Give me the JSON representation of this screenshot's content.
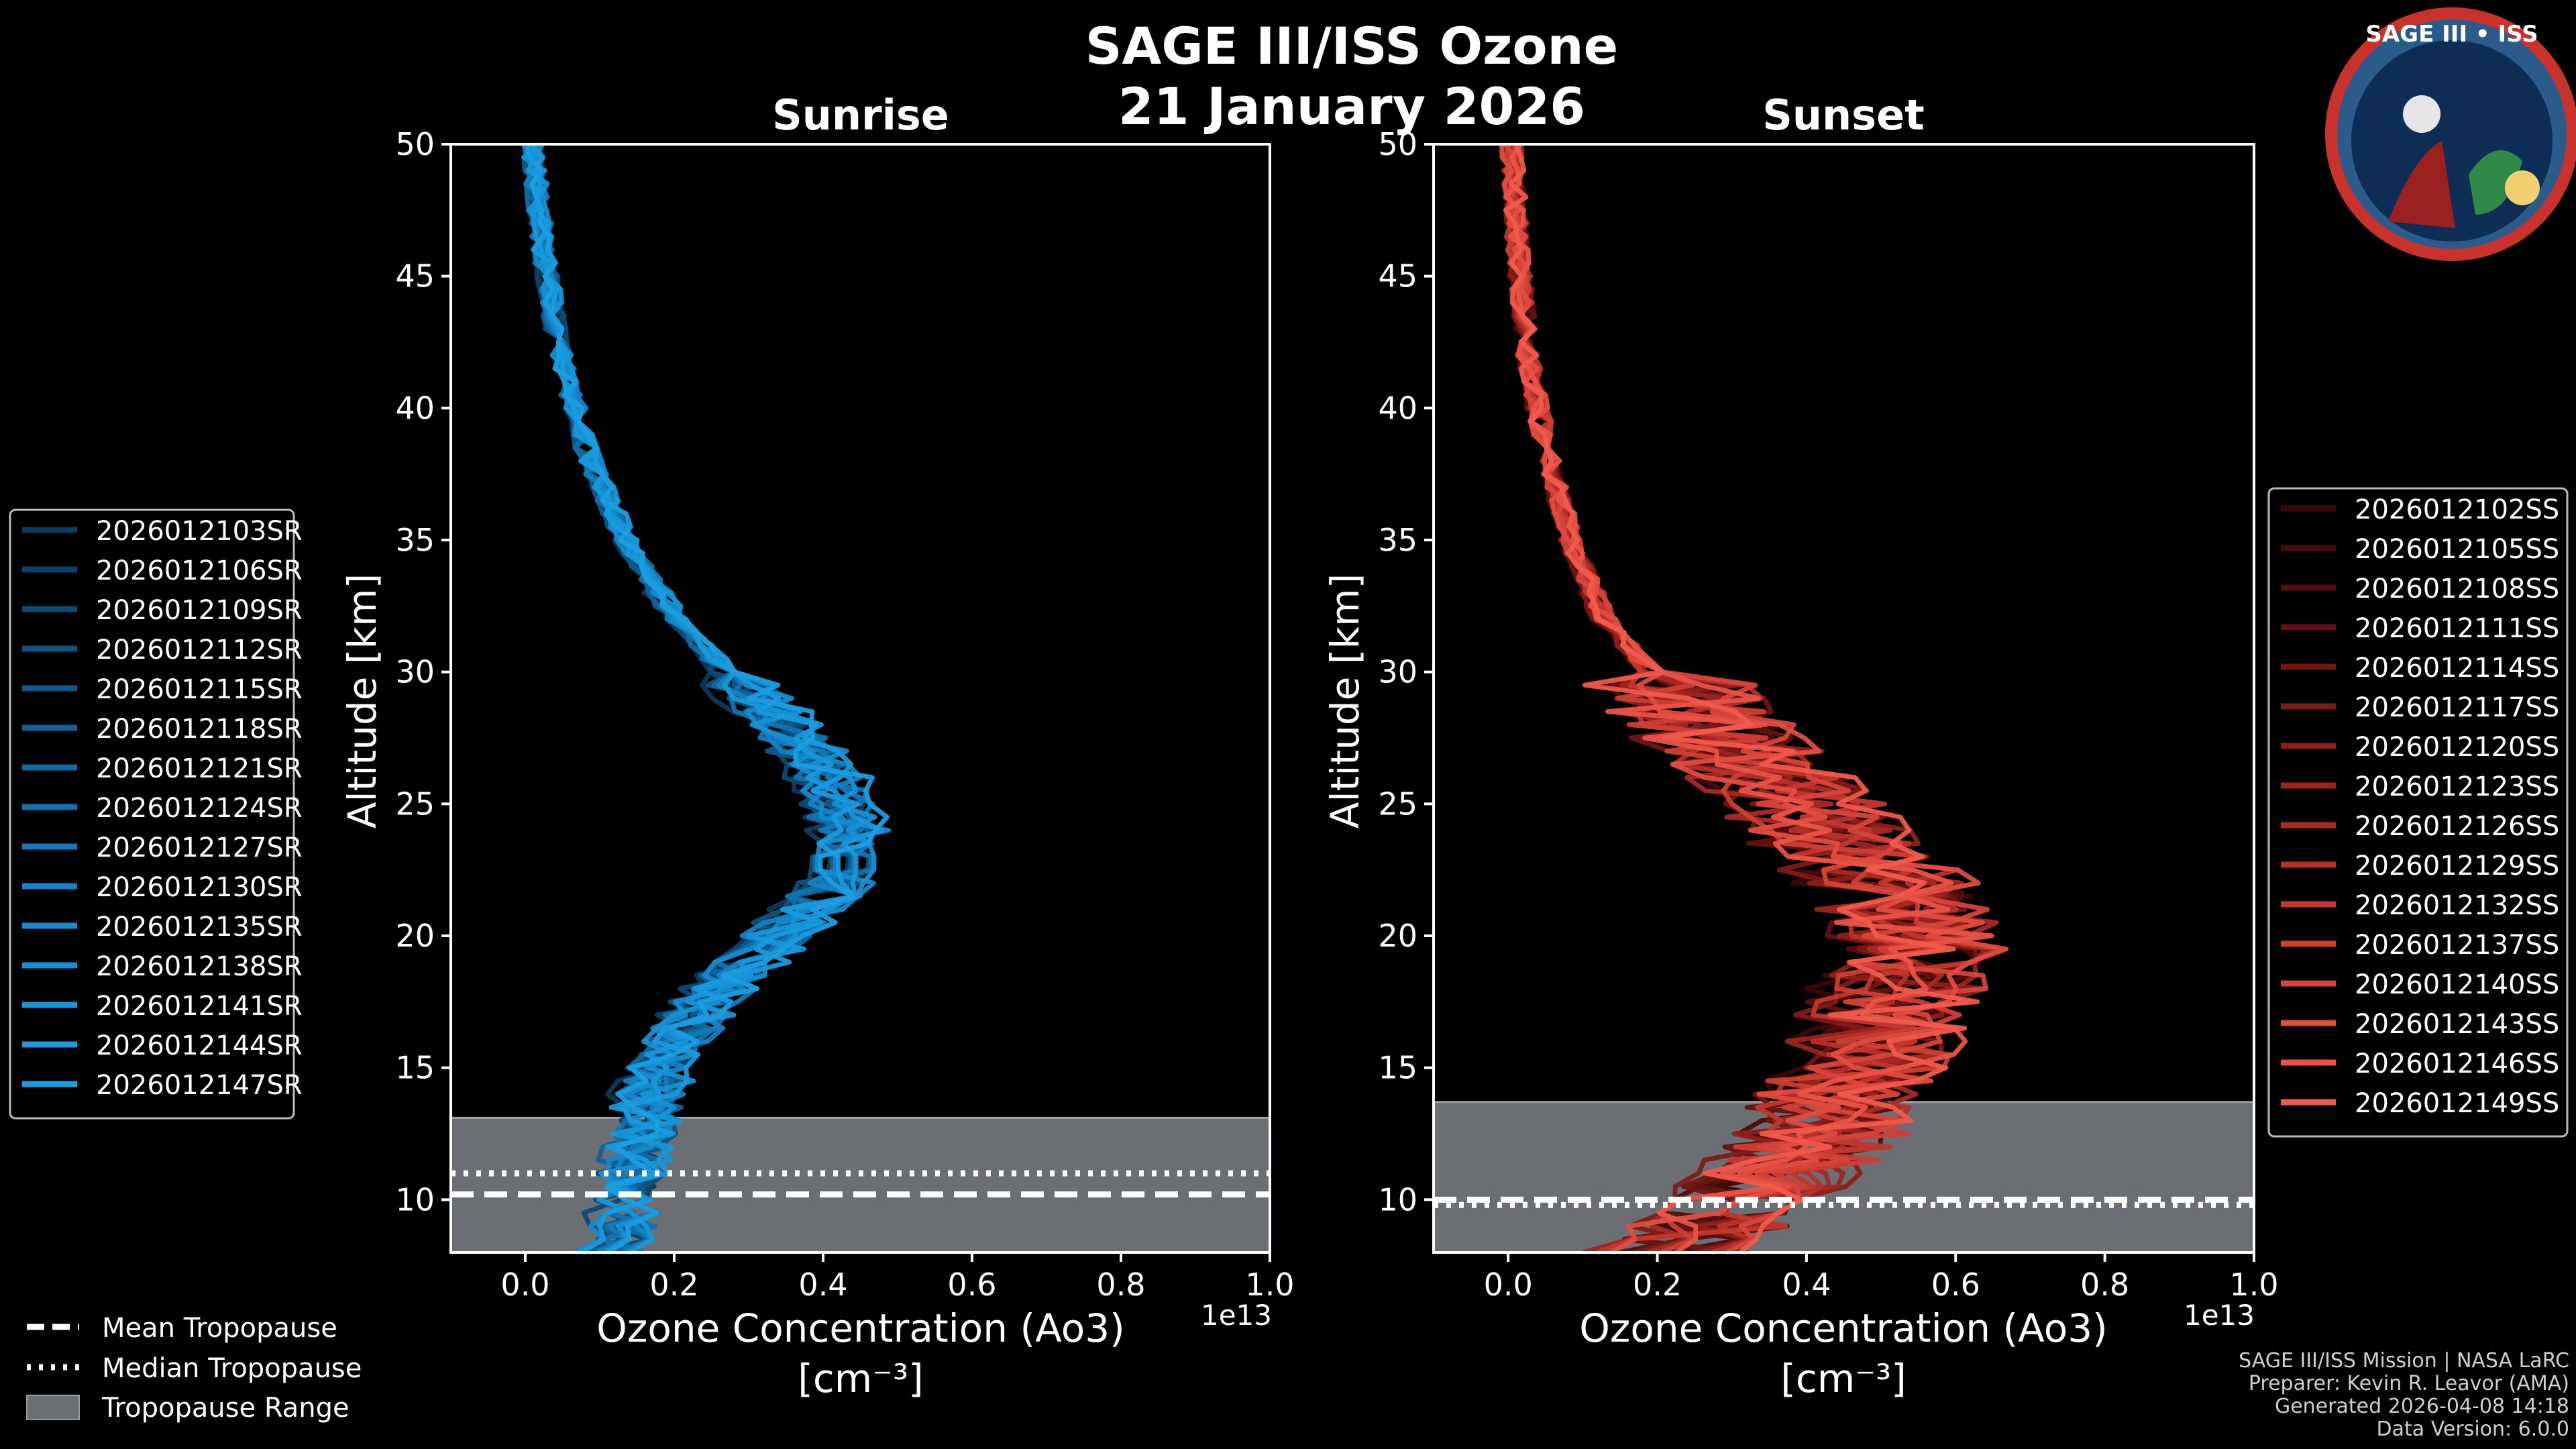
{
  "figure": {
    "title_line1": "SAGE III/ISS Ozone",
    "title_line2": "21 January 2026",
    "mission_badge_text": "SAGE III • ISS",
    "footer": {
      "line1": "SAGE III/ISS Mission | NASA LaRC",
      "line2": "Preparer: Kevin R. Leavor (AMA)",
      "line3": "Generated 2026-04-08 14:18",
      "line4": "Data Version: 6.0.0"
    },
    "tropopause_legend": {
      "mean": "Mean Tropopause",
      "median": "Median Tropopause",
      "range": "Tropopause Range"
    },
    "colors": {
      "background": "#000000",
      "sunrise": "#1a9ce0",
      "sunset": "#f05a4a",
      "tropopause_fill": "#6b6e72",
      "axes": "#ffffff"
    }
  },
  "chart_data": [
    {
      "type": "line",
      "id": "sunrise",
      "title": "Sunrise",
      "xlabel": "Ozone Concentration (Ao3)",
      "xlabel_units": "[cm⁻³]",
      "x_offset_label": "1e13",
      "ylabel": "Altitude [km]",
      "xlim": [
        -0.1,
        1.0
      ],
      "ylim": [
        8,
        50
      ],
      "xticks": [
        0.0,
        0.2,
        0.4,
        0.6,
        0.8,
        1.0
      ],
      "xtick_labels": [
        "0.0",
        "0.2",
        "0.4",
        "0.6",
        "0.8",
        "1.0"
      ],
      "yticks": [
        10,
        15,
        20,
        25,
        30,
        35,
        40,
        45,
        50
      ],
      "ytick_labels": [
        "10",
        "15",
        "20",
        "25",
        "30",
        "35",
        "40",
        "45",
        "50"
      ],
      "tropopause": {
        "range": [
          8,
          13.1
        ],
        "mean": 10.2,
        "median": 11.0
      },
      "altitudes": [
        8,
        10,
        12,
        14,
        16,
        18,
        20,
        22,
        24,
        26,
        28,
        30,
        32,
        35,
        38,
        42,
        46,
        50
      ],
      "base_profile": [
        0.12,
        0.14,
        0.16,
        0.17,
        0.21,
        0.27,
        0.35,
        0.44,
        0.45,
        0.42,
        0.36,
        0.28,
        0.21,
        0.14,
        0.09,
        0.05,
        0.025,
        0.01
      ],
      "series": [
        {
          "name": "2026012103SR",
          "color": "#0b3a5c"
        },
        {
          "name": "2026012106SR",
          "color": "#0c4266"
        },
        {
          "name": "2026012109SR",
          "color": "#0d4a72"
        },
        {
          "name": "2026012112SR",
          "color": "#0e527e"
        },
        {
          "name": "2026012115SR",
          "color": "#0f5a8a"
        },
        {
          "name": "2026012118SR",
          "color": "#106296"
        },
        {
          "name": "2026012121SR",
          "color": "#116aa2"
        },
        {
          "name": "2026012124SR",
          "color": "#1272ae"
        },
        {
          "name": "2026012127SR",
          "color": "#137aba"
        },
        {
          "name": "2026012130SR",
          "color": "#1482c4"
        },
        {
          "name": "2026012135SR",
          "color": "#158acc"
        },
        {
          "name": "2026012138SR",
          "color": "#1690d2"
        },
        {
          "name": "2026012141SR",
          "color": "#1796d8"
        },
        {
          "name": "2026012144SR",
          "color": "#189adc"
        },
        {
          "name": "2026012147SR",
          "color": "#1a9ee0"
        }
      ]
    },
    {
      "type": "line",
      "id": "sunset",
      "title": "Sunset",
      "xlabel": "Ozone Concentration (Ao3)",
      "xlabel_units": "[cm⁻³]",
      "x_offset_label": "1e13",
      "ylabel": "Altitude [km]",
      "xlim": [
        -0.1,
        1.0
      ],
      "ylim": [
        8,
        50
      ],
      "xticks": [
        0.0,
        0.2,
        0.4,
        0.6,
        0.8,
        1.0
      ],
      "xtick_labels": [
        "0.0",
        "0.2",
        "0.4",
        "0.6",
        "0.8",
        "1.0"
      ],
      "yticks": [
        10,
        15,
        20,
        25,
        30,
        35,
        40,
        45,
        50
      ],
      "ytick_labels": [
        "10",
        "15",
        "20",
        "25",
        "30",
        "35",
        "40",
        "45",
        "50"
      ],
      "tropopause": {
        "range": [
          8,
          13.7
        ],
        "mean": 10.0,
        "median": 9.8
      },
      "altitudes": [
        8,
        10,
        12,
        14,
        16,
        18,
        20,
        22,
        24,
        26,
        28,
        30,
        32,
        35,
        38,
        42,
        46,
        50
      ],
      "base_profile": [
        0.2,
        0.3,
        0.38,
        0.42,
        0.46,
        0.5,
        0.52,
        0.48,
        0.4,
        0.33,
        0.25,
        0.18,
        0.12,
        0.08,
        0.05,
        0.025,
        0.012,
        0.005
      ],
      "series": [
        {
          "name": "2026012102SS",
          "color": "#3a0806"
        },
        {
          "name": "2026012105SS",
          "color": "#460b08"
        },
        {
          "name": "2026012108SS",
          "color": "#540e0b"
        },
        {
          "name": "2026012111SS",
          "color": "#62120e"
        },
        {
          "name": "2026012114SS",
          "color": "#701612"
        },
        {
          "name": "2026012117SS",
          "color": "#7e1a16"
        },
        {
          "name": "2026012120SS",
          "color": "#8c1f1a"
        },
        {
          "name": "2026012123SS",
          "color": "#9a241e"
        },
        {
          "name": "2026012126SS",
          "color": "#a82a23"
        },
        {
          "name": "2026012129SS",
          "color": "#b63028"
        },
        {
          "name": "2026012132SS",
          "color": "#c2372e"
        },
        {
          "name": "2026012137SS",
          "color": "#cc3e34"
        },
        {
          "name": "2026012140SS",
          "color": "#d6453a"
        },
        {
          "name": "2026012143SS",
          "color": "#e04c40"
        },
        {
          "name": "2026012146SS",
          "color": "#e85346"
        },
        {
          "name": "2026012149SS",
          "color": "#f05a4c"
        }
      ]
    }
  ]
}
